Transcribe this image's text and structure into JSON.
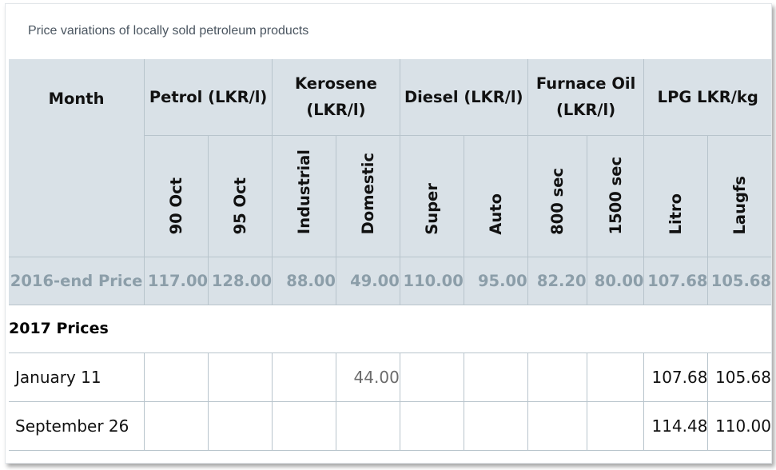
{
  "caption": "Price variations of locally sold petroleum products",
  "headers": {
    "month": "Month",
    "petrol": "Petrol (LKR/l)",
    "kerosene_line1": "Kerosene",
    "kerosene_line2": "(LKR/l)",
    "diesel": "Diesel (LKR/l)",
    "furnace_line1": "Furnace Oil",
    "furnace_line2": "(LKR/l)",
    "lpg": "LPG LKR/kg"
  },
  "subheaders": [
    "90 Oct",
    "95 Oct",
    "Industrial",
    "Domestic",
    "Super",
    "Auto",
    "800 sec",
    "1500 sec",
    "Litro",
    "Laugfs"
  ],
  "base_row": {
    "label": "2016-end Price",
    "values": [
      "117.00",
      "128.00",
      "88.00",
      "49.00",
      "110.00",
      "95.00",
      "82.20",
      "80.00",
      "107.68",
      "105.68"
    ]
  },
  "section_label": "2017 Prices",
  "rows": [
    {
      "label": "January 11",
      "values": [
        "",
        "",
        "",
        "44.00",
        "",
        "",
        "",
        "",
        "107.68",
        "105.68"
      ]
    },
    {
      "label": "September 26",
      "values": [
        "",
        "",
        "",
        "",
        "",
        "",
        "",
        "",
        "114.48",
        "110.00"
      ]
    }
  ],
  "colors": {
    "header_bg": "#d9e1e7",
    "base_text": "#8c9ea9",
    "border": "#b8c4cc"
  }
}
